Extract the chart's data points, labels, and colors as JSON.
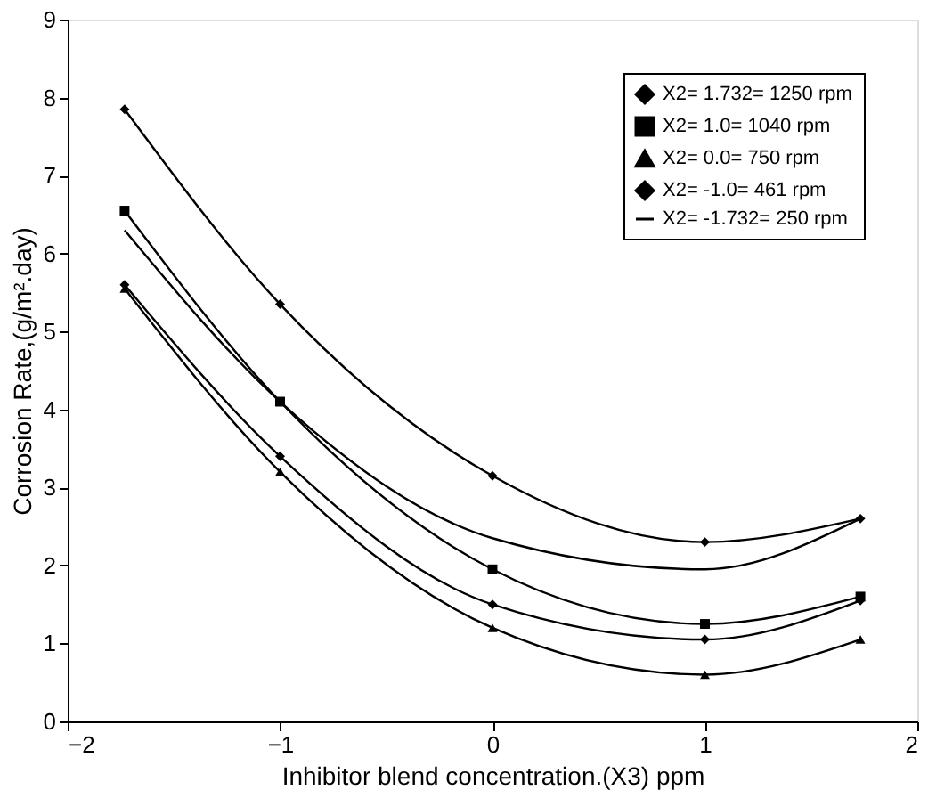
{
  "chart_data": {
    "type": "line",
    "xlabel": "Inhibitor blend concentration.(X3) ppm",
    "ylabel": "Corrosion Rate,(g/m².day)",
    "x": [
      -1.732,
      -1,
      0,
      1,
      1.732
    ],
    "series": [
      {
        "name": "X2= 1.732= 1250 rpm",
        "color": "#000000",
        "marker": "diamond",
        "values": [
          7.85,
          5.35,
          3.15,
          2.3,
          2.6
        ]
      },
      {
        "name": "X2= 1.0= 1040 rpm",
        "color": "#000000",
        "marker": "square",
        "values": [
          6.55,
          4.1,
          1.95,
          1.25,
          1.6
        ]
      },
      {
        "name": "X2= 0.0= 750 rpm",
        "color": "#000000",
        "marker": "triangle",
        "values": [
          5.55,
          3.2,
          1.2,
          0.6,
          1.05
        ]
      },
      {
        "name": "X2= -1.0= 461 rpm",
        "color": "#000000",
        "marker": "diamond",
        "values": [
          5.6,
          3.4,
          1.5,
          1.05,
          1.55
        ]
      },
      {
        "name": "X2= -1.732= 250 rpm",
        "color": "#000000",
        "marker": "none",
        "values": [
          6.3,
          4.1,
          2.35,
          1.95,
          2.6
        ]
      }
    ],
    "xlim": [
      -2,
      2
    ],
    "xticks": [
      -2,
      -1,
      0,
      1,
      2
    ],
    "ylim": [
      0,
      9
    ],
    "yticks": [
      0,
      1,
      2,
      3,
      4,
      5,
      6,
      7,
      8,
      9
    ],
    "grid": false,
    "legend": "top right",
    "line_style": "solid"
  }
}
